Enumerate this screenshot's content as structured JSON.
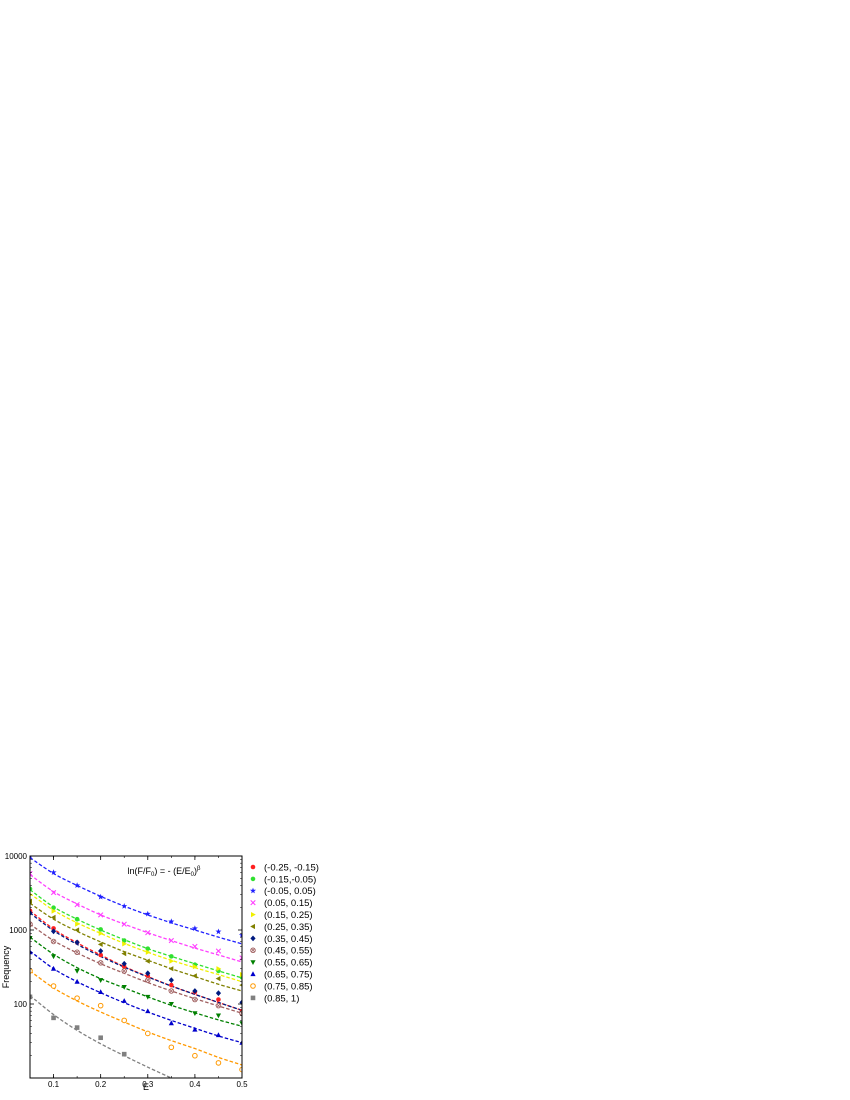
{
  "chart_data": {
    "type": "scatter",
    "title": "",
    "annotation": {
      "prefix": "ln(F/F",
      "sub1": "0",
      "middle": ") = - (E/E",
      "sub2": "0",
      "close": ")",
      "sup": "β"
    },
    "xlabel": "E",
    "ylabel": "Frequency",
    "xlim": [
      0.05,
      0.5
    ],
    "ylim": [
      10,
      10000
    ],
    "y_scale": "log",
    "legend_position": "right",
    "x_ticks": [
      0.1,
      0.2,
      0.3,
      0.4,
      0.5
    ],
    "x_tick_labels": [
      "0.1",
      "0.2",
      "0.3",
      "0.4",
      "0.5"
    ],
    "y_ticks": [
      100,
      1000,
      10000
    ],
    "y_tick_labels": [
      "100",
      "1000",
      "10000"
    ],
    "x": [
      0.05,
      0.1,
      0.15,
      0.2,
      0.25,
      0.3,
      0.35,
      0.4,
      0.45,
      0.5
    ],
    "series": [
      {
        "name": "(-0.25, -0.15)",
        "color": "#ff2020",
        "marker": "circle",
        "values": [
          1820,
          1050,
          680,
          460,
          320,
          240,
          180,
          145,
          115,
          80
        ],
        "fit": [
          1820,
          1030,
          670,
          460,
          320,
          235,
          175,
          135,
          105,
          82
        ]
      },
      {
        "name": "(-0.15,-0.05)",
        "color": "#30e030",
        "marker": "circle",
        "values": [
          3600,
          2000,
          1400,
          1020,
          720,
          560,
          440,
          340,
          280,
          230
        ],
        "fit": [
          3500,
          2050,
          1400,
          1000,
          740,
          560,
          440,
          350,
          280,
          225
        ]
      },
      {
        "name": "(-0.05, 0.05)",
        "color": "#2020ff",
        "marker": "star",
        "values": [
          10000,
          6000,
          4000,
          2800,
          2100,
          1650,
          1300,
          1050,
          950,
          850
        ],
        "fit": [
          9500,
          5800,
          4000,
          2850,
          2100,
          1600,
          1250,
          1000,
          800,
          650
        ]
      },
      {
        "name": "(0.05, 0.15)",
        "color": "#ff40ff",
        "marker": "x",
        "values": [
          5800,
          3200,
          2200,
          1600,
          1200,
          920,
          720,
          600,
          520,
          420
        ],
        "fit": [
          5600,
          3300,
          2250,
          1600,
          1200,
          920,
          720,
          570,
          460,
          370
        ]
      },
      {
        "name": "(0.15, 0.25)",
        "color": "#f0f000",
        "marker": "triangle-right",
        "values": [
          3000,
          1800,
          1200,
          900,
          650,
          500,
          380,
          320,
          300,
          250
        ],
        "fit": [
          3100,
          1850,
          1250,
          900,
          660,
          500,
          390,
          310,
          250,
          200
        ]
      },
      {
        "name": "(0.25, 0.35)",
        "color": "#808000",
        "marker": "triangle-left",
        "values": [
          2450,
          1480,
          1000,
          640,
          480,
          380,
          300,
          240,
          220,
          180
        ],
        "fit": [
          2300,
          1400,
          960,
          690,
          510,
          390,
          300,
          235,
          185,
          150
        ]
      },
      {
        "name": "(0.35, 0.45)",
        "color": "#001a80",
        "marker": "diamond",
        "values": [
          1700,
          960,
          680,
          520,
          350,
          260,
          210,
          150,
          140,
          105
        ],
        "fit": [
          1700,
          980,
          640,
          440,
          315,
          232,
          175,
          135,
          105,
          82
        ]
      },
      {
        "name": "(0.45, 0.55)",
        "color": "#a06060",
        "marker": "circle-x",
        "values": [
          1200,
          700,
          500,
          360,
          280,
          210,
          150,
          115,
          95,
          75
        ],
        "fit": [
          1200,
          720,
          490,
          350,
          260,
          195,
          150,
          118,
          94,
          75
        ]
      },
      {
        "name": "(0.55, 0.65)",
        "color": "#008000",
        "marker": "triangle-down",
        "values": [
          780,
          440,
          280,
          210,
          170,
          125,
          100,
          75,
          70,
          55
        ],
        "fit": [
          800,
          470,
          310,
          220,
          165,
          125,
          96,
          76,
          61,
          50
        ]
      },
      {
        "name": "(0.65, 0.75)",
        "color": "#0000cc",
        "marker": "triangle-up",
        "values": [
          500,
          300,
          200,
          145,
          110,
          80,
          55,
          45,
          38,
          30
        ],
        "fit": [
          520,
          300,
          200,
          142,
          104,
          78,
          60,
          47,
          37,
          30
        ]
      },
      {
        "name": "(0.75, 0.85)",
        "color": "#ff9900",
        "marker": "circle-open",
        "values": [
          280,
          175,
          120,
          95,
          60,
          40,
          26,
          20,
          16,
          13
        ],
        "fit": [
          280,
          165,
          110,
          78,
          57,
          42,
          32,
          25,
          19,
          15
        ]
      },
      {
        "name": "(0.85, 1)",
        "color": "#808080",
        "marker": "square",
        "values": [
          125,
          65,
          48,
          35,
          21,
          null,
          null,
          null,
          null,
          null
        ],
        "fit": [
          130,
          72,
          44,
          29,
          20,
          14,
          10,
          null,
          null,
          null
        ]
      }
    ]
  }
}
